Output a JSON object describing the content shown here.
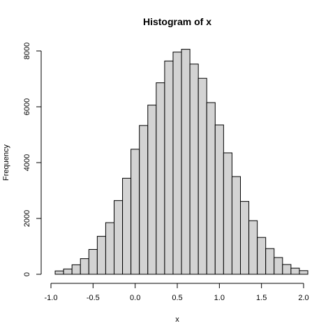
{
  "chart_data": {
    "type": "bar",
    "title": "Histogram of x",
    "xlabel": "x",
    "ylabel": "Frequency",
    "bin_edges": [
      -0.95,
      -0.85,
      -0.75,
      -0.65,
      -0.55,
      -0.45,
      -0.35,
      -0.25,
      -0.15,
      -0.05,
      0.05,
      0.15,
      0.25,
      0.35,
      0.45,
      0.55,
      0.65,
      0.75,
      0.85,
      0.95,
      1.05,
      1.15,
      1.25,
      1.35,
      1.45,
      1.55,
      1.65,
      1.75,
      1.85,
      1.95,
      2.05
    ],
    "values": [
      120,
      190,
      340,
      560,
      890,
      1360,
      1850,
      2640,
      3440,
      4480,
      5330,
      6060,
      6860,
      7640,
      7960,
      8060,
      7530,
      7020,
      6150,
      5350,
      4350,
      3500,
      2610,
      1920,
      1320,
      920,
      600,
      350,
      220,
      130
    ],
    "xlim": [
      -1.0,
      2.0
    ],
    "ylim": [
      0,
      8000
    ],
    "x_ticks": [
      -1.0,
      -0.5,
      0.0,
      0.5,
      1.0,
      1.5,
      2.0
    ],
    "x_tick_labels": [
      "-1.0",
      "-0.5",
      "0.0",
      "0.5",
      "1.0",
      "1.5",
      "2.0"
    ],
    "y_ticks": [
      0,
      2000,
      4000,
      6000,
      8000
    ],
    "y_tick_labels": [
      "0",
      "2000",
      "4000",
      "6000",
      "8000"
    ],
    "grid": false,
    "bar_color": "#d3d3d3",
    "edge_color": "#000000"
  }
}
